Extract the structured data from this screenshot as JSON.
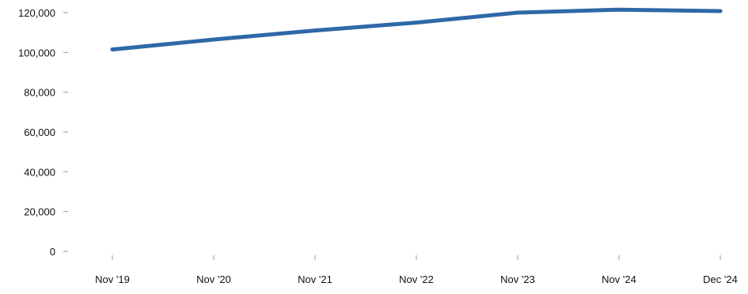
{
  "chart_data": {
    "type": "line",
    "title": "",
    "xlabel": "",
    "ylabel": "",
    "categories": [
      "Nov '19",
      "Nov '20",
      "Nov '21",
      "Nov '22",
      "Nov '23",
      "Nov '24",
      "Dec '24"
    ],
    "series": [
      {
        "values": [
          101500,
          106500,
          111000,
          115000,
          120000,
          121500,
          120800
        ]
      }
    ],
    "ylim": [
      0,
      120000
    ],
    "yticks": [
      0,
      20000,
      40000,
      60000,
      80000,
      100000,
      120000
    ],
    "ytick_labels": [
      "0",
      "20,000",
      "40,000",
      "60,000",
      "80,000",
      "100,000",
      "120,000"
    ],
    "grid": false,
    "legend": "none",
    "colors": {
      "line": "#2f68a8"
    }
  }
}
